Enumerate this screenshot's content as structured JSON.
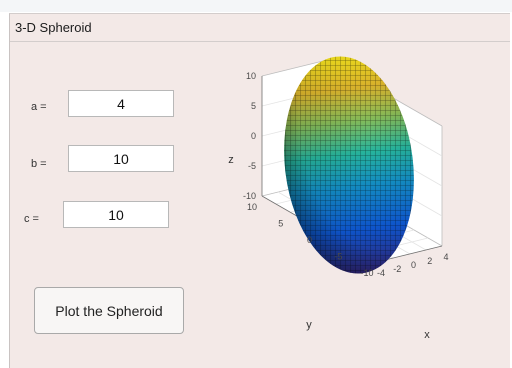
{
  "panel": {
    "title": "3-D Spheroid"
  },
  "fields": [
    {
      "label": "a =",
      "value": "4"
    },
    {
      "label": "b =",
      "value": "10"
    },
    {
      "label": "c =",
      "value": "10"
    }
  ],
  "button": {
    "label": "Plot the Spheroid"
  },
  "chart_data": {
    "type": "surface",
    "surface": "spheroid",
    "semi_axes": {
      "a": 4,
      "b": 10,
      "c": 10
    },
    "colormap": "parula",
    "grid": true,
    "xlabel": "x",
    "ylabel": "y",
    "zlabel": "z",
    "xlim": [
      -4,
      4
    ],
    "ylim": [
      -10,
      10
    ],
    "zlim": [
      -10,
      10
    ],
    "xticks": [
      "-4",
      "-2",
      "0",
      "2",
      "4"
    ],
    "yticks": [
      "10",
      "5",
      "0",
      "-5",
      "-10"
    ],
    "zticks": [
      "10",
      "5",
      "0",
      "-5",
      "-10"
    ]
  }
}
